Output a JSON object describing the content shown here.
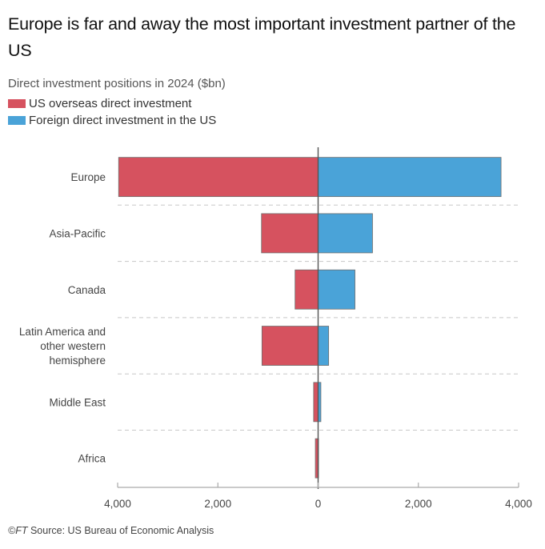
{
  "title": "Europe is far and away the most important investment partner of the US",
  "subtitle": "Direct investment positions in 2024 ($bn)",
  "legend": [
    {
      "label": "US overseas direct investment",
      "color": "#d6525f"
    },
    {
      "label": "Foreign direct investment in the US",
      "color": "#4aa3d8"
    }
  ],
  "source": {
    "brand": "©FT",
    "text": " Source: US Bureau of Economic Analysis"
  },
  "chart_data": {
    "type": "bar",
    "orientation": "horizontal-diverging",
    "title": "Europe is far and away the most important investment partner of the US",
    "subtitle": "Direct investment positions in 2024 ($bn)",
    "xlabel": "",
    "ylabel": "",
    "categories": [
      [
        "Europe"
      ],
      [
        "Asia-Pacific"
      ],
      [
        "Canada"
      ],
      [
        "Latin America and",
        "other western",
        "hemisphere"
      ],
      [
        "Middle East"
      ],
      [
        "Africa"
      ]
    ],
    "series": [
      {
        "name": "US overseas direct investment",
        "direction": "left",
        "color": "#d6525f",
        "values": [
          3980,
          1130,
          460,
          1120,
          90,
          55
        ]
      },
      {
        "name": "Foreign direct investment in the US",
        "direction": "right",
        "color": "#4aa3d8",
        "values": [
          3650,
          1085,
          735,
          210,
          55,
          5
        ]
      }
    ],
    "xlim": [
      -4000,
      4000
    ],
    "xticks": [
      -4000,
      -2000,
      0,
      2000,
      4000
    ],
    "xtick_labels": [
      "4,000",
      "2,000",
      "0",
      "2,000",
      "4,000"
    ],
    "grid": "dashed separators between categories",
    "legend_position": "top-left"
  }
}
